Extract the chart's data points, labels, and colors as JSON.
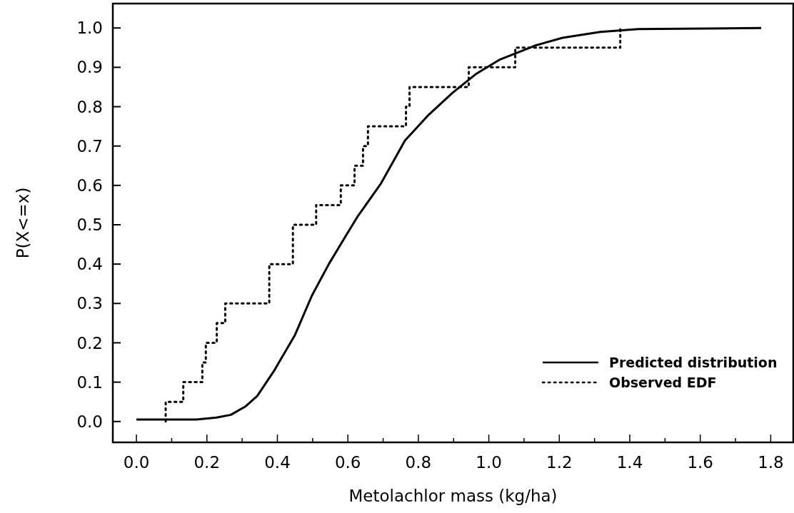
{
  "chart_data": {
    "type": "line",
    "xlabel": "Metolachlor mass (kg/ha)",
    "ylabel": "P(X<=x)",
    "xlim": [
      -0.067,
      1.864
    ],
    "ylim": [
      -0.053,
      1.062
    ],
    "xticks": [
      {
        "value": 0,
        "label": "0.0"
      },
      {
        "value": 0.1,
        "label": null
      },
      {
        "value": 0.2,
        "label": "0.2"
      },
      {
        "value": 0.3,
        "label": null
      },
      {
        "value": 0.4,
        "label": "0.4"
      },
      {
        "value": 0.5,
        "label": null
      },
      {
        "value": 0.6,
        "label": "0.6"
      },
      {
        "value": 0.7,
        "label": null
      },
      {
        "value": 0.8,
        "label": "0.8"
      },
      {
        "value": 0.9,
        "label": null
      },
      {
        "value": 1,
        "label": "1.0"
      },
      {
        "value": 1.1,
        "label": null
      },
      {
        "value": 1.2,
        "label": "1.2"
      },
      {
        "value": 1.3,
        "label": null
      },
      {
        "value": 1.4,
        "label": "1.4"
      },
      {
        "value": 1.5,
        "label": null
      },
      {
        "value": 1.6,
        "label": "1.6"
      },
      {
        "value": 1.7,
        "label": null
      },
      {
        "value": 1.8,
        "label": "1.8"
      }
    ],
    "yticks": [
      {
        "value": 0,
        "label": "0.0"
      },
      0.1,
      0.2,
      0.3,
      0.4,
      0.5,
      0.6,
      0.7,
      0.8,
      0.9,
      {
        "value": 1,
        "label": "1.0"
      }
    ],
    "legend": "bottom right",
    "grid": false,
    "series": [
      {
        "name": "Predicted distribution",
        "color": "#000000",
        "line_style": "solid",
        "x": [
          0,
          0.17,
          0.227,
          0.268,
          0.309,
          0.343,
          0.39,
          0.45,
          0.498,
          0.546,
          0.593,
          0.627,
          0.694,
          0.762,
          0.83,
          0.897,
          0.965,
          1.032,
          1.1,
          1.134,
          1.209,
          1.316,
          1.424,
          1.773
        ],
        "values": [
          0.005,
          0.005,
          0.01,
          0.017,
          0.038,
          0.065,
          0.128,
          0.22,
          0.32,
          0.4,
          0.47,
          0.52,
          0.605,
          0.714,
          0.78,
          0.835,
          0.884,
          0.92,
          0.944,
          0.956,
          0.975,
          0.99,
          0.997,
          1.0
        ]
      },
      {
        "name": "Observed EDF",
        "type": "step",
        "color": "#000000",
        "line_style": "dotted",
        "x": [
          0.083,
          0.083,
          0.133,
          0.187,
          0.197,
          0.228,
          0.252,
          0.377,
          0.444,
          0.51,
          0.58,
          0.619,
          0.643,
          0.657,
          0.765,
          0.775,
          0.943,
          1.075,
          1.373
        ],
        "values": [
          0,
          0.05,
          0.1,
          0.15,
          0.2,
          0.25,
          0.3,
          0.4,
          0.5,
          0.55,
          0.6,
          0.65,
          0.7,
          0.75,
          0.8,
          0.85,
          0.9,
          0.95,
          1.0
        ]
      }
    ]
  }
}
